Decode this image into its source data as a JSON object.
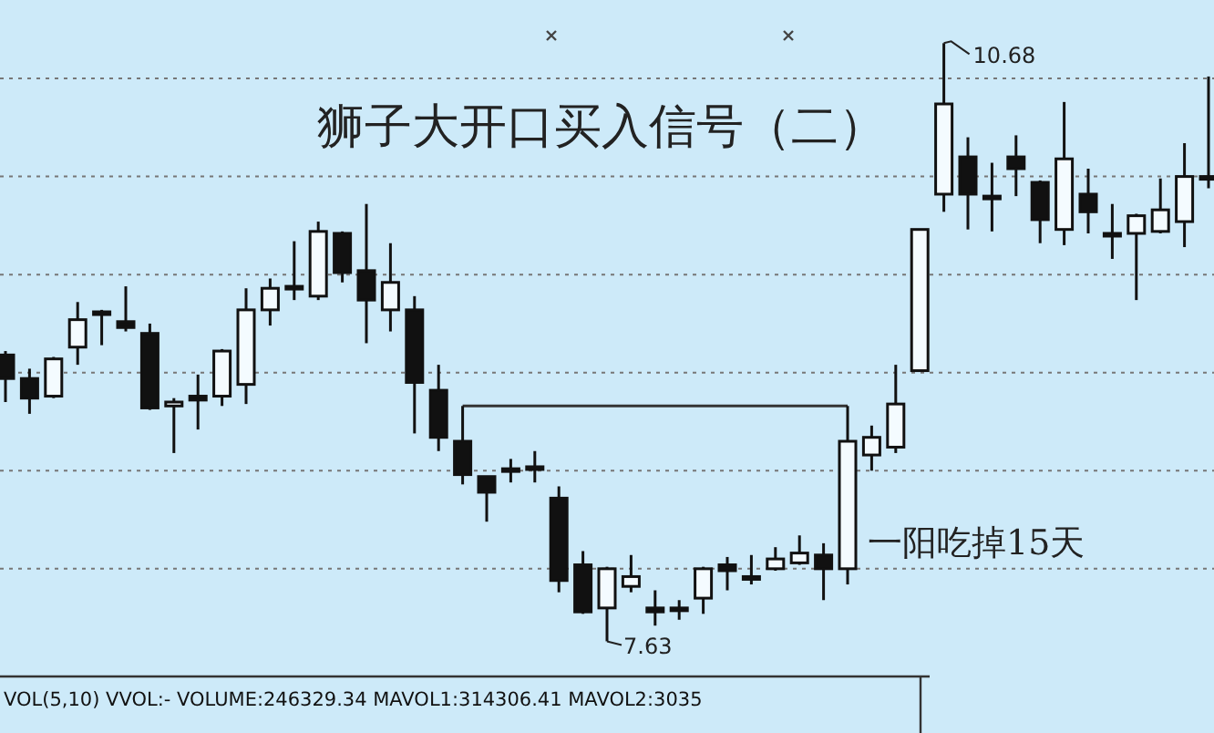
{
  "chart_data": {
    "type": "candlestick",
    "title": "狮子大开口买入信号（二）",
    "categories": [
      null,
      null,
      null,
      null,
      null,
      null,
      null,
      null,
      null,
      null,
      null,
      null,
      null,
      null,
      null,
      null,
      null,
      null,
      null,
      null,
      null,
      null,
      null,
      null,
      null,
      null,
      null,
      null,
      null,
      null,
      null,
      null,
      null,
      null,
      null,
      null,
      null,
      null,
      null,
      null,
      null,
      null,
      null,
      null,
      null,
      null,
      null,
      null,
      null,
      null,
      null
    ],
    "ohlc": [
      [
        9.09,
        9.11,
        8.85,
        8.97
      ],
      [
        8.97,
        9.02,
        8.79,
        8.87
      ],
      [
        8.88,
        9.08,
        8.87,
        9.07
      ],
      [
        9.13,
        9.36,
        9.04,
        9.27
      ],
      [
        9.31,
        9.32,
        9.14,
        9.3
      ],
      [
        9.26,
        9.44,
        9.21,
        9.23
      ],
      [
        9.2,
        9.25,
        8.81,
        8.82
      ],
      [
        8.83,
        8.87,
        8.59,
        8.85
      ],
      [
        8.88,
        8.99,
        8.71,
        8.86
      ],
      [
        8.88,
        9.12,
        8.83,
        9.11
      ],
      [
        8.94,
        9.43,
        8.84,
        9.32
      ],
      [
        9.32,
        9.48,
        9.24,
        9.43
      ],
      [
        9.43,
        9.67,
        9.37,
        9.44
      ],
      [
        9.39,
        9.77,
        9.37,
        9.72
      ],
      [
        9.71,
        9.72,
        9.46,
        9.51
      ],
      [
        9.52,
        9.86,
        9.15,
        9.37
      ],
      [
        9.32,
        9.66,
        9.21,
        9.46
      ],
      [
        9.32,
        9.39,
        8.69,
        8.95
      ],
      [
        8.91,
        9.04,
        8.6,
        8.67
      ],
      [
        8.65,
        8.83,
        8.43,
        8.48
      ],
      [
        8.47,
        8.47,
        8.24,
        8.39
      ],
      [
        8.51,
        8.56,
        8.44,
        8.5
      ],
      [
        8.52,
        8.6,
        8.44,
        8.51
      ],
      [
        8.36,
        8.42,
        7.88,
        7.94
      ],
      [
        8.02,
        8.09,
        7.77,
        7.78
      ],
      [
        7.8,
        8.01,
        7.63,
        8.0
      ],
      [
        7.91,
        8.07,
        7.88,
        7.96
      ],
      [
        7.8,
        7.89,
        7.71,
        7.78
      ],
      [
        7.8,
        7.84,
        7.74,
        7.79
      ],
      [
        7.85,
        8.01,
        7.77,
        8.0
      ],
      [
        8.02,
        8.06,
        7.89,
        7.99
      ],
      [
        7.96,
        8.07,
        7.92,
        7.95
      ],
      [
        8.0,
        8.11,
        7.99,
        8.05
      ],
      [
        8.03,
        8.17,
        8.02,
        8.08
      ],
      [
        8.07,
        8.13,
        7.84,
        8.0
      ],
      [
        8.0,
        8.83,
        7.92,
        8.65
      ],
      [
        8.58,
        8.73,
        8.5,
        8.67
      ],
      [
        8.62,
        9.04,
        8.59,
        8.84
      ],
      [
        9.01,
        9.73,
        9.01,
        9.73
      ],
      [
        9.91,
        10.68,
        9.82,
        10.37
      ],
      [
        10.1,
        10.2,
        9.73,
        9.91
      ],
      [
        9.9,
        10.07,
        9.72,
        9.89
      ],
      [
        10.1,
        10.21,
        9.9,
        10.04
      ],
      [
        9.97,
        9.98,
        9.66,
        9.78
      ],
      [
        9.73,
        10.38,
        9.65,
        10.09
      ],
      [
        9.91,
        10.04,
        9.71,
        9.82
      ],
      [
        9.71,
        9.86,
        9.58,
        9.7
      ],
      [
        9.71,
        9.81,
        9.37,
        9.8
      ],
      [
        9.72,
        9.99,
        9.71,
        9.83
      ],
      [
        9.77,
        10.17,
        9.64,
        10.0
      ],
      [
        10.0,
        10.51,
        9.94,
        9.99
      ]
    ],
    "ylim": [
      7.46,
      10.9
    ],
    "yticks": [
      {
        "value": 8,
        "label": null
      },
      {
        "value": 8.5,
        "label": null
      },
      {
        "value": 9,
        "label": null
      },
      {
        "value": 9.5,
        "label": null
      },
      {
        "value": 10,
        "label": null
      },
      {
        "value": 10.5,
        "label": null
      }
    ],
    "grid": "y",
    "annotations": [
      "10.68",
      "7.63",
      "一阳吃掉15天",
      "VOL(5,10) VVOL:-   VOLUME:246329.34 MAVOL1:314306.41 MAVOL2:3035"
    ]
  }
}
